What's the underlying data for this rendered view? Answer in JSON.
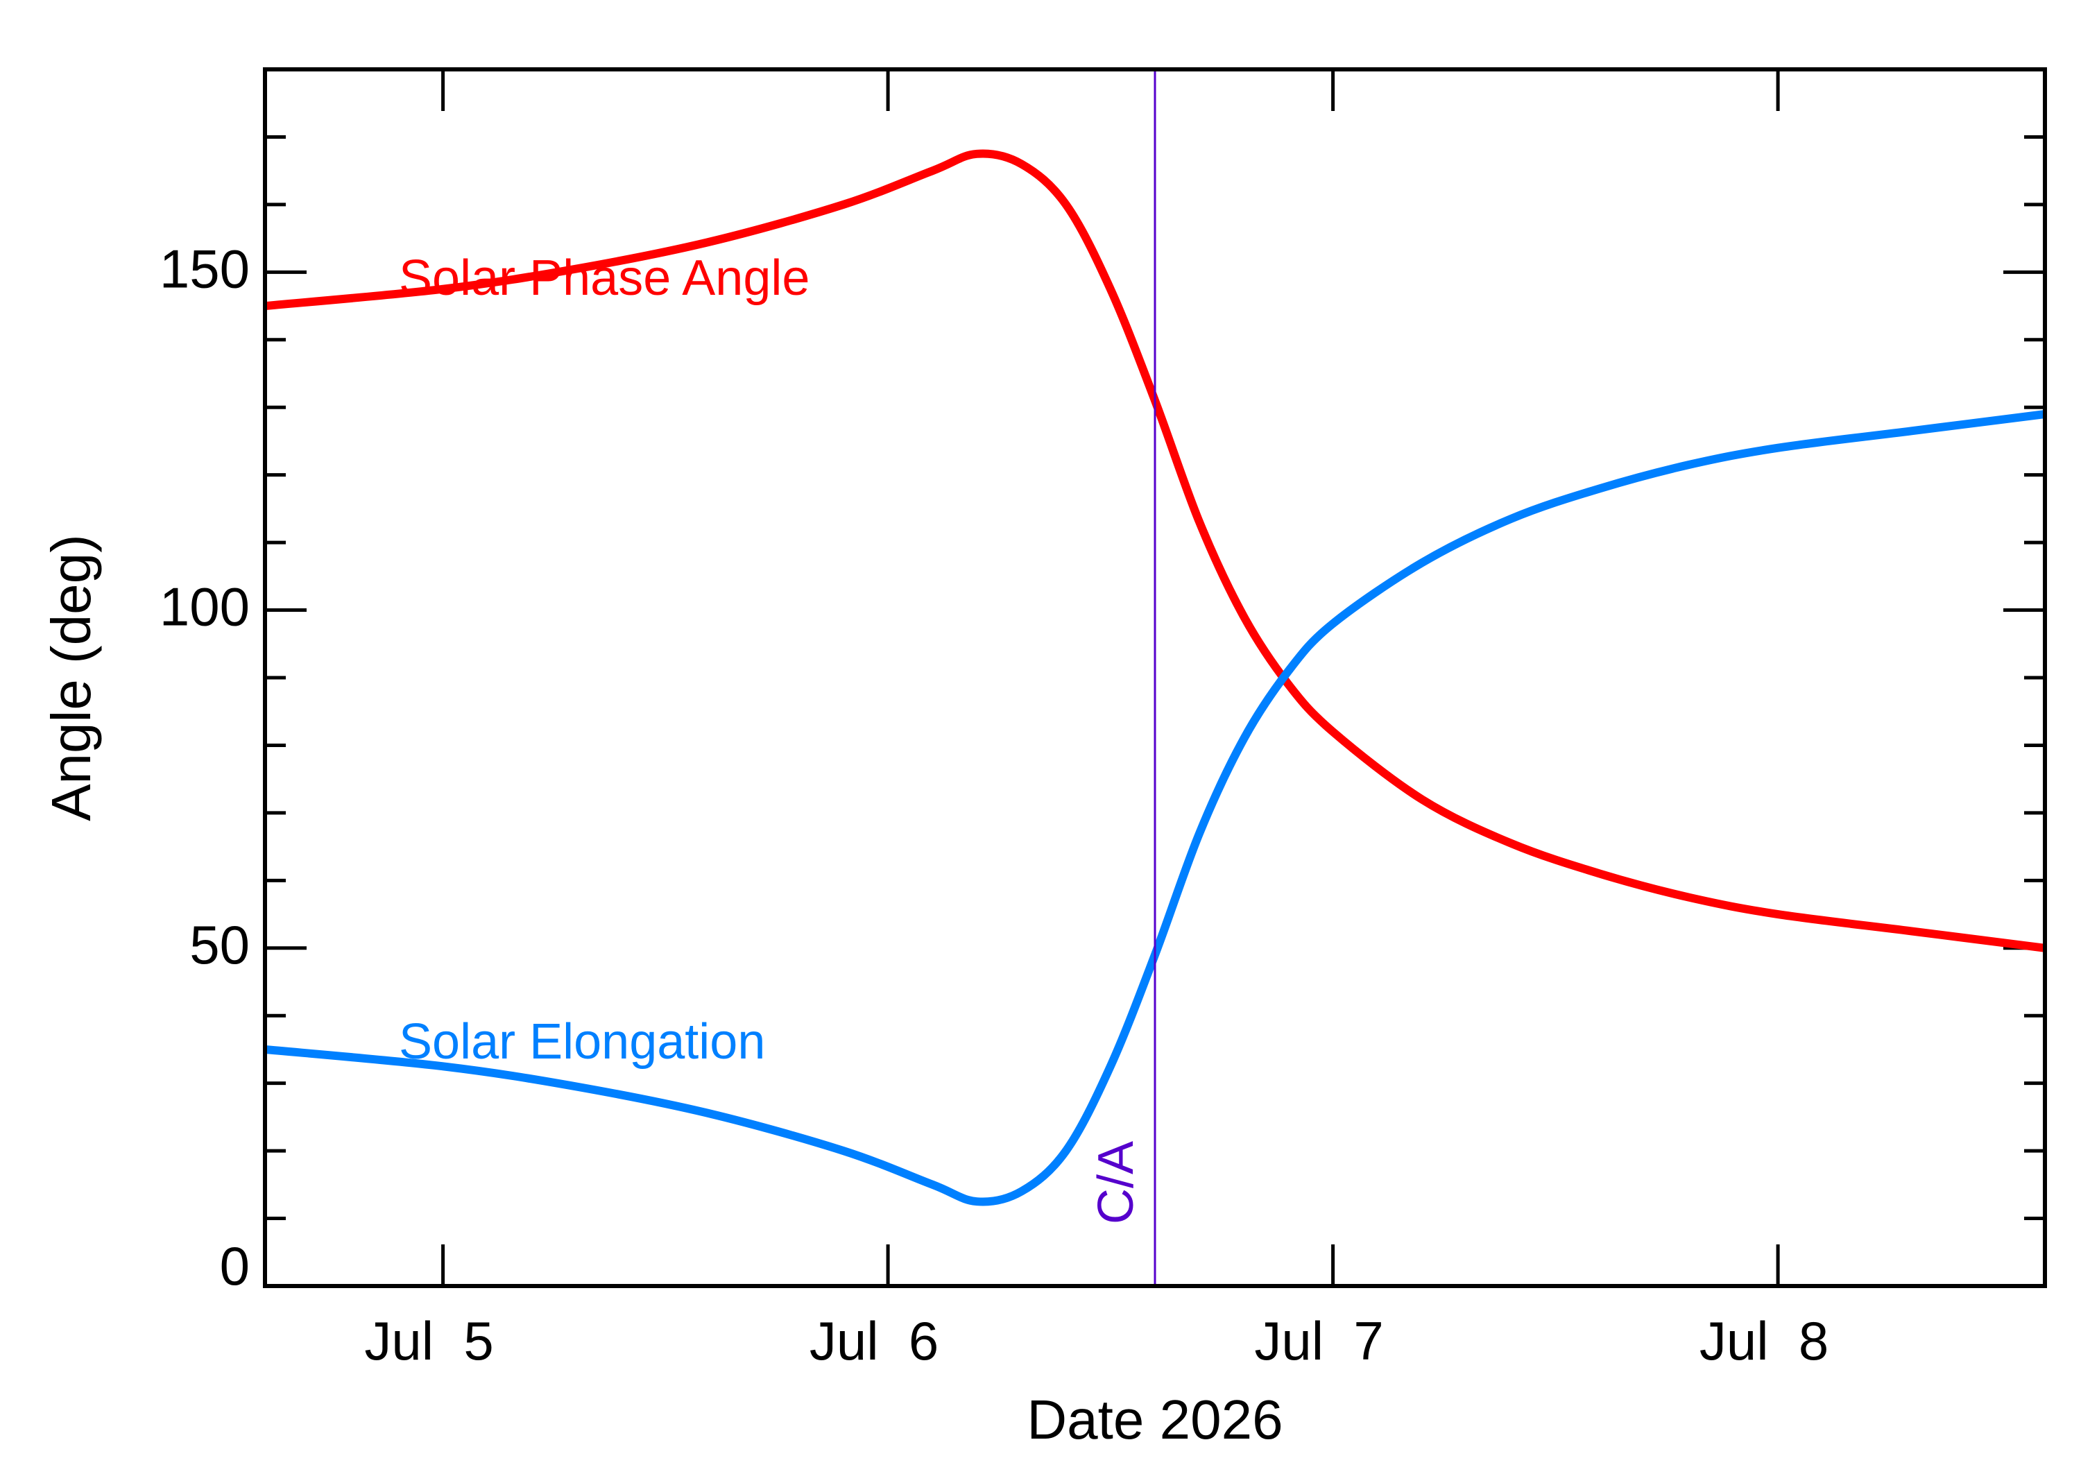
{
  "chart_data": {
    "type": "line",
    "xlabel": "Date 2026",
    "ylabel": "Angle (deg)",
    "xlim": [
      "2026-07-04 14:24",
      "2026-07-08 14:24"
    ],
    "ylim": [
      0,
      180
    ],
    "x_ticks": [
      {
        "date": "2026-07-05",
        "label": "Jul  5"
      },
      {
        "date": "2026-07-06",
        "label": "Jul  6"
      },
      {
        "date": "2026-07-07",
        "label": "Jul  7"
      },
      {
        "date": "2026-07-08",
        "label": "Jul  8"
      }
    ],
    "y_ticks": [
      {
        "value": 0,
        "label": "0"
      },
      {
        "value": 50,
        "label": "50"
      },
      {
        "value": 100,
        "label": "100"
      },
      {
        "value": 150,
        "label": "150"
      }
    ],
    "y_minor_step": 10,
    "grid": false,
    "closest_approach": {
      "x": "2026-07-06 14:24",
      "label": "C/A",
      "color": "#5500cc"
    },
    "series": [
      {
        "name": "Solar Phase Angle",
        "color": "#ff0000",
        "x": [
          "2026-07-04 14:24",
          "2026-07-05 00:00",
          "2026-07-05 07:12",
          "2026-07-05 14:24",
          "2026-07-05 21:36",
          "2026-07-06 02:24",
          "2026-07-06 04:48",
          "2026-07-06 07:12",
          "2026-07-06 09:36",
          "2026-07-06 12:00",
          "2026-07-06 14:24",
          "2026-07-06 16:48",
          "2026-07-06 19:12",
          "2026-07-06 21:36",
          "2026-07-07 00:00",
          "2026-07-07 04:48",
          "2026-07-07 09:36",
          "2026-07-07 14:24",
          "2026-07-07 19:12",
          "2026-07-08 00:00",
          "2026-07-08 07:12",
          "2026-07-08 14:24"
        ],
        "y": [
          145,
          147.5,
          150.5,
          154.5,
          160,
          165,
          167.5,
          166,
          160,
          147.5,
          131,
          113,
          99,
          89,
          82,
          72,
          65.5,
          61,
          57.5,
          55,
          52.5,
          50
        ]
      },
      {
        "name": "Solar Elongation",
        "color": "#0080ff",
        "x": [
          "2026-07-04 14:24",
          "2026-07-05 00:00",
          "2026-07-05 07:12",
          "2026-07-05 14:24",
          "2026-07-05 21:36",
          "2026-07-06 02:24",
          "2026-07-06 04:48",
          "2026-07-06 07:12",
          "2026-07-06 09:36",
          "2026-07-06 12:00",
          "2026-07-06 14:24",
          "2026-07-06 16:48",
          "2026-07-06 19:12",
          "2026-07-06 21:36",
          "2026-07-07 00:00",
          "2026-07-07 04:48",
          "2026-07-07 09:36",
          "2026-07-07 14:24",
          "2026-07-07 19:12",
          "2026-07-08 00:00",
          "2026-07-08 07:12",
          "2026-07-08 14:24"
        ],
        "y": [
          35,
          32.5,
          29.5,
          25.5,
          20,
          15,
          12.5,
          14,
          20,
          32.5,
          49,
          67,
          81,
          91,
          98,
          107,
          113.5,
          118,
          121.5,
          124,
          126.5,
          129
        ]
      }
    ]
  }
}
